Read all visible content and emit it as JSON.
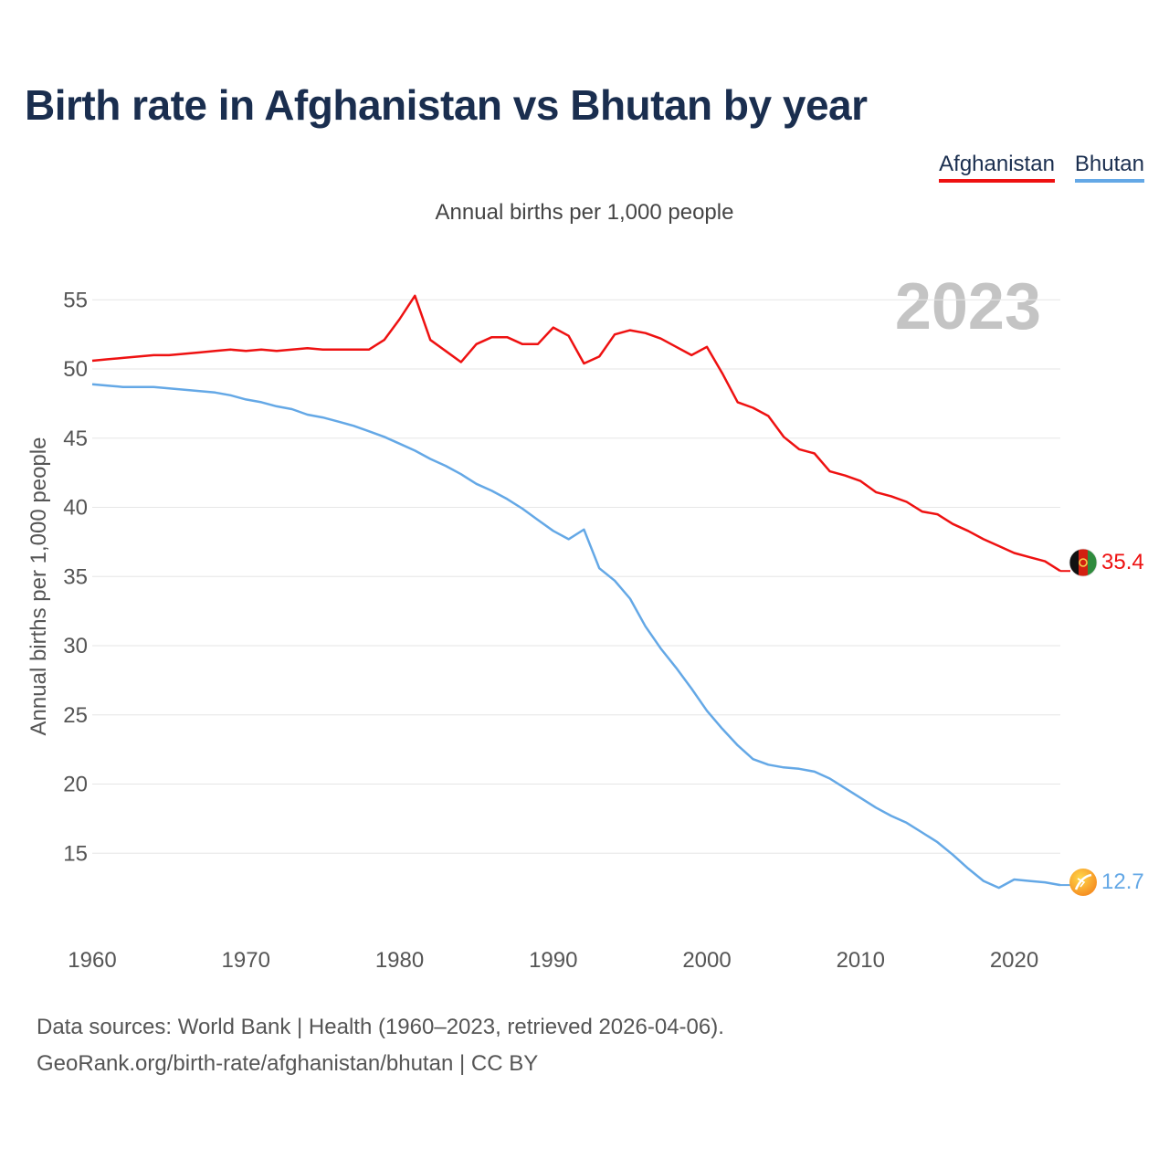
{
  "chart_data": {
    "type": "line",
    "title": "Birth rate in Afghanistan vs Bhutan by year",
    "subtitle": "Annual births per 1,000 people",
    "ylabel": "Annual births per 1,000 people",
    "xlabel": "",
    "year_label": "2023",
    "xlim": [
      1960,
      2023
    ],
    "ylim": [
      10,
      57
    ],
    "x_ticks": [
      1960,
      1970,
      1980,
      1990,
      2000,
      2010,
      2020
    ],
    "y_ticks": [
      15,
      20,
      25,
      30,
      35,
      40,
      45,
      50,
      55
    ],
    "grid": true,
    "legend_position": "top-right",
    "x": [
      1960,
      1961,
      1962,
      1963,
      1964,
      1965,
      1966,
      1967,
      1968,
      1969,
      1970,
      1971,
      1972,
      1973,
      1974,
      1975,
      1976,
      1977,
      1978,
      1979,
      1980,
      1981,
      1982,
      1983,
      1984,
      1985,
      1986,
      1987,
      1988,
      1989,
      1990,
      1991,
      1992,
      1993,
      1994,
      1995,
      1996,
      1997,
      1998,
      1999,
      2000,
      2001,
      2002,
      2003,
      2004,
      2005,
      2006,
      2007,
      2008,
      2009,
      2010,
      2011,
      2012,
      2013,
      2014,
      2015,
      2016,
      2017,
      2018,
      2019,
      2020,
      2021,
      2022,
      2023
    ],
    "series": [
      {
        "name": "Afghanistan",
        "color": "#ee1111",
        "end_label": "35.4",
        "values": [
          50.6,
          50.7,
          50.8,
          50.9,
          51.0,
          51.0,
          51.1,
          51.2,
          51.3,
          51.4,
          51.3,
          51.4,
          51.3,
          51.4,
          51.5,
          51.4,
          51.4,
          51.4,
          51.4,
          52.1,
          53.6,
          55.3,
          52.1,
          51.3,
          50.5,
          51.8,
          52.3,
          52.3,
          51.8,
          51.8,
          53.0,
          52.4,
          50.4,
          50.9,
          52.5,
          52.8,
          52.6,
          52.2,
          51.6,
          51.0,
          51.6,
          49.7,
          47.6,
          47.2,
          46.6,
          45.1,
          44.2,
          43.9,
          42.6,
          42.3,
          41.9,
          41.1,
          40.8,
          40.4,
          39.7,
          39.5,
          38.8,
          38.3,
          37.7,
          37.2,
          36.7,
          36.4,
          36.1,
          35.4
        ]
      },
      {
        "name": "Bhutan",
        "color": "#64a8e6",
        "end_label": "12.7",
        "values": [
          48.9,
          48.8,
          48.7,
          48.7,
          48.7,
          48.6,
          48.5,
          48.4,
          48.3,
          48.1,
          47.8,
          47.6,
          47.3,
          47.1,
          46.7,
          46.5,
          46.2,
          45.9,
          45.5,
          45.1,
          44.6,
          44.1,
          43.5,
          43.0,
          42.4,
          41.7,
          41.2,
          40.6,
          39.9,
          39.1,
          38.3,
          37.7,
          38.4,
          35.6,
          34.7,
          33.4,
          31.4,
          29.8,
          28.4,
          26.9,
          25.3,
          24.0,
          22.8,
          21.8,
          21.4,
          21.2,
          21.1,
          20.9,
          20.4,
          19.7,
          19.0,
          18.3,
          17.7,
          17.2,
          16.5,
          15.8,
          14.9,
          13.9,
          13.0,
          12.5,
          13.1,
          13.0,
          12.9,
          12.7
        ]
      }
    ]
  },
  "footer": {
    "line1": "Data sources: World Bank | Health (1960–2023, retrieved 2026-04-06).",
    "line2": "GeoRank.org/birth-rate/afghanistan/bhutan | CC BY"
  }
}
